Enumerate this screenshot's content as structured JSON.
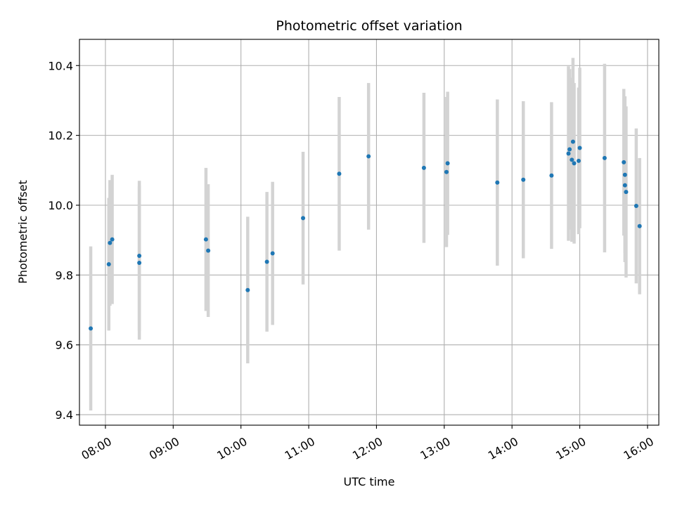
{
  "chart_data": {
    "type": "scatter",
    "title": "Photometric offset variation",
    "xlabel": "UTC time",
    "ylabel": "Photometric offset",
    "x_type": "time",
    "xlim": [
      "07:37",
      "16:10"
    ],
    "ylim": [
      9.37,
      10.475
    ],
    "grid": true,
    "x_ticks": [
      "08:00",
      "09:00",
      "10:00",
      "11:00",
      "12:00",
      "13:00",
      "14:00",
      "15:00",
      "16:00"
    ],
    "y_ticks": [
      "9.4",
      "9.6",
      "9.8",
      "10.0",
      "10.2",
      "10.4"
    ],
    "colors": {
      "points": "#1f77b4",
      "error_bars": "#d3d3d3",
      "grid": "#b0b0b0"
    },
    "points": [
      {
        "x": "07:47",
        "y": 9.647,
        "yerr": 0.235
      },
      {
        "x": "08:03",
        "y": 9.831,
        "yerr": 0.19
      },
      {
        "x": "08:04",
        "y": 9.892,
        "yerr": 0.18
      },
      {
        "x": "08:06",
        "y": 9.902,
        "yerr": 0.185
      },
      {
        "x": "08:30",
        "y": 9.855,
        "yerr": 0.215
      },
      {
        "x": "08:30",
        "y": 9.835,
        "yerr": 0.22
      },
      {
        "x": "09:29",
        "y": 9.902,
        "yerr": 0.205
      },
      {
        "x": "09:31",
        "y": 9.87,
        "yerr": 0.19
      },
      {
        "x": "10:06",
        "y": 9.757,
        "yerr": 0.21
      },
      {
        "x": "10:23",
        "y": 9.838,
        "yerr": 0.2
      },
      {
        "x": "10:28",
        "y": 9.862,
        "yerr": 0.205
      },
      {
        "x": "10:55",
        "y": 9.963,
        "yerr": 0.19
      },
      {
        "x": "11:27",
        "y": 10.09,
        "yerr": 0.22
      },
      {
        "x": "11:53",
        "y": 10.14,
        "yerr": 0.21
      },
      {
        "x": "12:42",
        "y": 10.107,
        "yerr": 0.215
      },
      {
        "x": "13:02",
        "y": 10.095,
        "yerr": 0.215
      },
      {
        "x": "13:03",
        "y": 10.12,
        "yerr": 0.205
      },
      {
        "x": "13:47",
        "y": 10.065,
        "yerr": 0.238
      },
      {
        "x": "14:10",
        "y": 10.073,
        "yerr": 0.225
      },
      {
        "x": "14:35",
        "y": 10.085,
        "yerr": 0.21
      },
      {
        "x": "14:50",
        "y": 10.148,
        "yerr": 0.25
      },
      {
        "x": "14:51",
        "y": 10.16,
        "yerr": 0.23
      },
      {
        "x": "14:53",
        "y": 10.13,
        "yerr": 0.235
      },
      {
        "x": "14:54",
        "y": 10.182,
        "yerr": 0.24
      },
      {
        "x": "14:55",
        "y": 10.12,
        "yerr": 0.23
      },
      {
        "x": "14:59",
        "y": 10.127,
        "yerr": 0.21
      },
      {
        "x": "15:00",
        "y": 10.164,
        "yerr": 0.23
      },
      {
        "x": "15:22",
        "y": 10.135,
        "yerr": 0.27
      },
      {
        "x": "15:39",
        "y": 10.123,
        "yerr": 0.21
      },
      {
        "x": "15:40",
        "y": 10.057,
        "yerr": 0.22
      },
      {
        "x": "15:40",
        "y": 10.087,
        "yerr": 0.225
      },
      {
        "x": "15:41",
        "y": 10.038,
        "yerr": 0.245
      },
      {
        "x": "15:50",
        "y": 9.998,
        "yerr": 0.222
      },
      {
        "x": "15:53",
        "y": 9.94,
        "yerr": 0.195
      }
    ]
  }
}
